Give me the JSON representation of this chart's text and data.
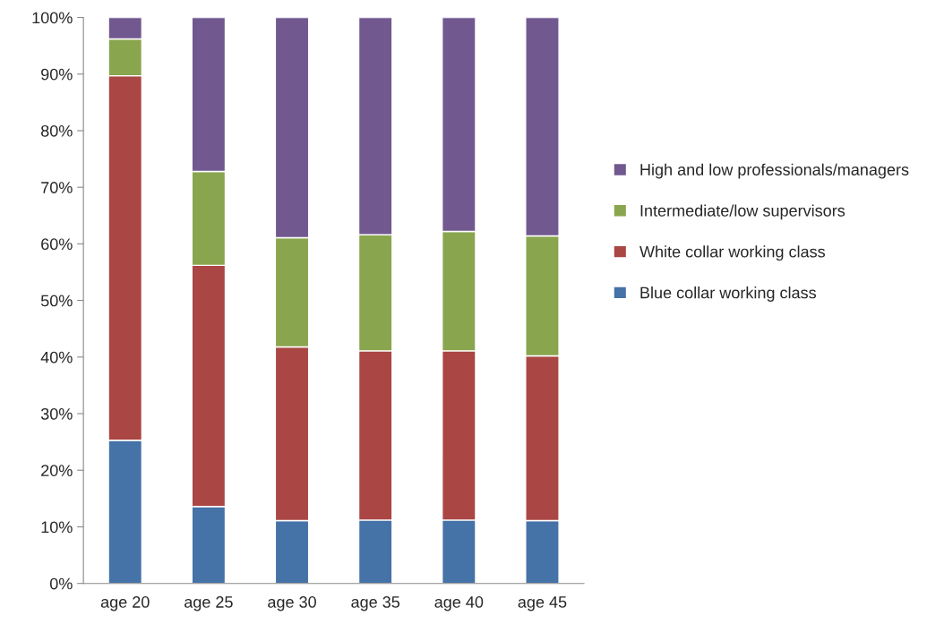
{
  "chart_data": {
    "type": "bar",
    "stacked": true,
    "categories": [
      "age 20",
      "age 25",
      "age 30",
      "age 35",
      "age 40",
      "age 45"
    ],
    "series": [
      {
        "name": "Blue collar working class",
        "color": "#4572a7",
        "values": [
          25.3,
          13.6,
          11.1,
          11.2,
          11.2,
          11.1
        ]
      },
      {
        "name": "White collar working class",
        "color": "#aa4643",
        "values": [
          64.4,
          42.6,
          30.7,
          29.9,
          29.9,
          29.1
        ]
      },
      {
        "name": "Intermediate/low supervisors",
        "color": "#89a54e",
        "values": [
          6.5,
          16.6,
          19.3,
          20.5,
          21.1,
          21.2
        ]
      },
      {
        "name": "High and low professionals/managers",
        "color": "#71588f",
        "values": [
          3.8,
          27.2,
          38.9,
          38.4,
          37.8,
          38.6
        ]
      }
    ],
    "ylim": [
      0,
      100
    ],
    "yticks": [
      {
        "value": 0,
        "label": "0%"
      },
      {
        "value": 10,
        "label": "10%"
      },
      {
        "value": 20,
        "label": "20%"
      },
      {
        "value": 30,
        "label": "30%"
      },
      {
        "value": 40,
        "label": "40%"
      },
      {
        "value": 50,
        "label": "50%"
      },
      {
        "value": 60,
        "label": "60%"
      },
      {
        "value": 70,
        "label": "70%"
      },
      {
        "value": 80,
        "label": "80%"
      },
      {
        "value": 90,
        "label": "90%"
      },
      {
        "value": 100,
        "label": "100%"
      }
    ],
    "grid": false,
    "legend": "right"
  }
}
